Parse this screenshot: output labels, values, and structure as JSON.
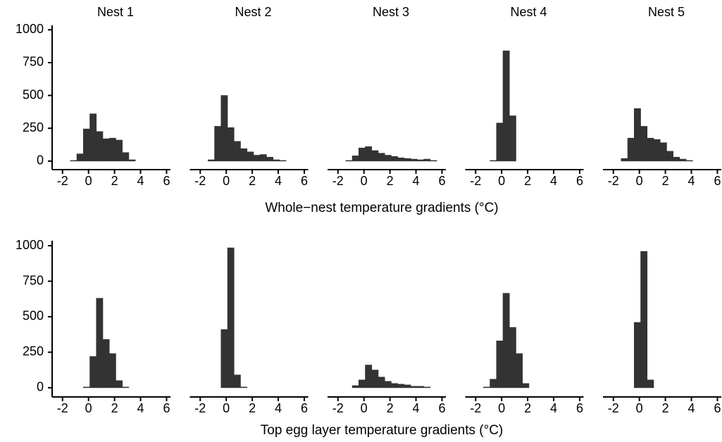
{
  "chart_data": [
    {
      "type": "histogram",
      "title": "Nest 1",
      "bins": [
        -2.4,
        -1.9,
        -1.4,
        -0.9,
        -0.4,
        0.1,
        0.6,
        1.1,
        1.6,
        2.1,
        2.6,
        3.1,
        3.6,
        4.1,
        4.6,
        5.1,
        5.6,
        6.1
      ],
      "values": [
        0,
        0,
        5,
        55,
        245,
        360,
        225,
        170,
        175,
        160,
        65,
        10,
        0,
        0,
        0,
        0,
        0
      ],
      "color": "#333333",
      "xlim": [
        -2.8,
        6.3
      ],
      "ylim": [
        -65,
        1050
      ],
      "xticks": [
        -2,
        0,
        2,
        4,
        6
      ],
      "yticks": [
        0,
        250,
        500,
        750,
        1000
      ]
    },
    {
      "type": "histogram",
      "title": "Nest 2",
      "bins": [
        -2.4,
        -1.9,
        -1.4,
        -0.9,
        -0.4,
        0.1,
        0.6,
        1.1,
        1.6,
        2.1,
        2.6,
        3.1,
        3.6,
        4.1,
        4.6,
        5.1,
        5.6,
        6.1
      ],
      "values": [
        0,
        0,
        10,
        265,
        500,
        255,
        150,
        95,
        70,
        45,
        50,
        30,
        10,
        5,
        0,
        0,
        0
      ],
      "color": "#333333",
      "xlim": [
        -2.8,
        6.3
      ],
      "ylim": [
        -65,
        1050
      ],
      "xticks": [
        -2,
        0,
        2,
        4,
        6
      ]
    },
    {
      "type": "histogram",
      "title": "Nest 3",
      "xlabel": "Whole−nest temperature gradients (°C)",
      "bins": [
        -2.4,
        -1.9,
        -1.4,
        -0.9,
        -0.4,
        0.1,
        0.6,
        1.1,
        1.6,
        2.1,
        2.6,
        3.1,
        3.6,
        4.1,
        4.6,
        5.1,
        5.6,
        6.1
      ],
      "values": [
        0,
        0,
        5,
        40,
        100,
        110,
        80,
        60,
        45,
        35,
        25,
        20,
        15,
        10,
        15,
        5,
        0
      ],
      "color": "#333333",
      "xlim": [
        -2.8,
        6.3
      ],
      "ylim": [
        -65,
        1050
      ],
      "xticks": [
        -2,
        0,
        2,
        4,
        6
      ]
    },
    {
      "type": "histogram",
      "title": "Nest 4",
      "bins": [
        -2.4,
        -1.9,
        -1.4,
        -0.9,
        -0.4,
        0.1,
        0.6,
        1.1,
        1.6,
        2.1,
        2.6,
        3.1,
        3.6,
        4.1,
        4.6,
        5.1,
        5.6,
        6.1
      ],
      "values": [
        0,
        0,
        0,
        5,
        290,
        840,
        345,
        0,
        0,
        0,
        0,
        0,
        0,
        0,
        0,
        0,
        0
      ],
      "color": "#333333",
      "xlim": [
        -2.8,
        6.3
      ],
      "ylim": [
        -65,
        1050
      ],
      "xticks": [
        -2,
        0,
        2,
        4,
        6
      ]
    },
    {
      "type": "histogram",
      "title": "Nest 5",
      "bins": [
        -2.4,
        -1.9,
        -1.4,
        -0.9,
        -0.4,
        0.1,
        0.6,
        1.1,
        1.6,
        2.1,
        2.6,
        3.1,
        3.6,
        4.1,
        4.6,
        5.1,
        5.6,
        6.1
      ],
      "values": [
        0,
        0,
        20,
        175,
        400,
        265,
        175,
        165,
        140,
        75,
        30,
        15,
        5,
        0,
        0,
        0,
        0
      ],
      "color": "#333333",
      "xlim": [
        -2.8,
        6.3
      ],
      "ylim": [
        -65,
        1050
      ],
      "xticks": [
        -2,
        0,
        2,
        4,
        6
      ]
    },
    {
      "type": "histogram",
      "bins": [
        -2.4,
        -1.9,
        -1.4,
        -0.9,
        -0.4,
        0.1,
        0.6,
        1.1,
        1.6,
        2.1,
        2.6,
        3.1,
        3.6,
        4.1,
        4.6,
        5.1,
        5.6,
        6.1
      ],
      "values": [
        0,
        0,
        0,
        0,
        5,
        220,
        630,
        340,
        240,
        50,
        5,
        0,
        0,
        0,
        0,
        0,
        0
      ],
      "color": "#333333",
      "xlim": [
        -2.8,
        6.3
      ],
      "ylim": [
        -65,
        1050
      ],
      "xticks": [
        -2,
        0,
        2,
        4,
        6
      ],
      "yticks": [
        0,
        250,
        500,
        750,
        1000
      ]
    },
    {
      "type": "histogram",
      "bins": [
        -2.4,
        -1.9,
        -1.4,
        -0.9,
        -0.4,
        0.1,
        0.6,
        1.1,
        1.6,
        2.1,
        2.6,
        3.1,
        3.6,
        4.1,
        4.6,
        5.1,
        5.6,
        6.1
      ],
      "values": [
        0,
        0,
        0,
        0,
        410,
        985,
        90,
        5,
        0,
        0,
        0,
        0,
        0,
        0,
        0,
        0,
        0
      ],
      "color": "#333333",
      "xlim": [
        -2.8,
        6.3
      ],
      "ylim": [
        -65,
        1050
      ],
      "xticks": [
        -2,
        0,
        2,
        4,
        6
      ]
    },
    {
      "type": "histogram",
      "xlabel": "Top egg layer temperature gradients (°C)",
      "bins": [
        -2.4,
        -1.9,
        -1.4,
        -0.9,
        -0.4,
        0.1,
        0.6,
        1.1,
        1.6,
        2.1,
        2.6,
        3.1,
        3.6,
        4.1,
        4.6,
        5.1,
        5.6,
        6.1
      ],
      "values": [
        0,
        0,
        0,
        15,
        55,
        160,
        125,
        75,
        45,
        30,
        25,
        20,
        10,
        10,
        5,
        0,
        0
      ],
      "color": "#333333",
      "xlim": [
        -2.8,
        6.3
      ],
      "ylim": [
        -65,
        1050
      ],
      "xticks": [
        -2,
        0,
        2,
        4,
        6
      ]
    },
    {
      "type": "histogram",
      "bins": [
        -2.4,
        -1.9,
        -1.4,
        -0.9,
        -0.4,
        0.1,
        0.6,
        1.1,
        1.6,
        2.1,
        2.6,
        3.1,
        3.6,
        4.1,
        4.6,
        5.1,
        5.6,
        6.1
      ],
      "values": [
        0,
        0,
        5,
        60,
        330,
        665,
        425,
        240,
        30,
        0,
        0,
        0,
        0,
        0,
        0,
        0,
        0
      ],
      "color": "#333333",
      "xlim": [
        -2.8,
        6.3
      ],
      "ylim": [
        -65,
        1050
      ],
      "xticks": [
        -2,
        0,
        2,
        4,
        6
      ]
    },
    {
      "type": "histogram",
      "bins": [
        -2.4,
        -1.9,
        -1.4,
        -0.9,
        -0.4,
        0.1,
        0.6,
        1.1,
        1.6,
        2.1,
        2.6,
        3.1,
        3.6,
        4.1,
        4.6,
        5.1,
        5.6,
        6.1
      ],
      "values": [
        0,
        0,
        0,
        0,
        460,
        960,
        55,
        0,
        0,
        0,
        0,
        0,
        0,
        0,
        0,
        0,
        0
      ],
      "color": "#333333",
      "xlim": [
        -2.8,
        6.3
      ],
      "ylim": [
        -65,
        1050
      ],
      "xticks": [
        -2,
        0,
        2,
        4,
        6
      ]
    }
  ]
}
